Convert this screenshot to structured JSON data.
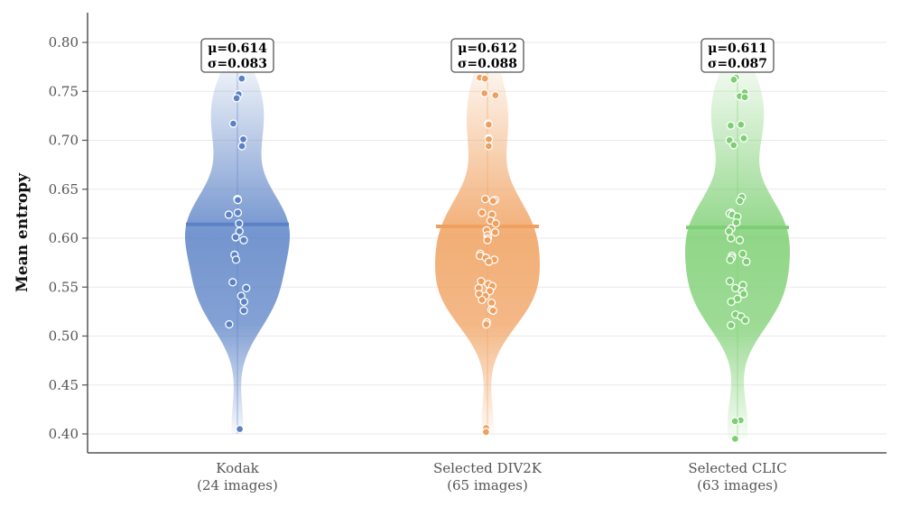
{
  "chart_data": {
    "type": "violin",
    "title": "",
    "xlabel": "",
    "ylabel": "Mean entropy",
    "ylim": [
      0.38,
      0.83
    ],
    "yticks": [
      "0.40",
      "0.45",
      "0.50",
      "0.55",
      "0.60",
      "0.65",
      "0.70",
      "0.75",
      "0.80"
    ],
    "grid": true,
    "series": [
      {
        "name": "Kodak",
        "sublabel": "(24 images)",
        "color": "#5b82c6",
        "mean": 0.614,
        "mean_label": "μ=0.614",
        "std_label": "σ=0.083",
        "range": [
          0.4,
          0.77
        ],
        "points": [
          0.763,
          0.747,
          0.743,
          0.717,
          0.701,
          0.694,
          0.64,
          0.639,
          0.626,
          0.624,
          0.615,
          0.607,
          0.601,
          0.598,
          0.583,
          0.578,
          0.555,
          0.549,
          0.541,
          0.535,
          0.526,
          0.512,
          0.405
        ]
      },
      {
        "name": "Selected DIV2K",
        "sublabel": "(65 images)",
        "color": "#f0a05e",
        "mean": 0.612,
        "mean_label": "μ=0.612",
        "std_label": "σ=0.088",
        "range": [
          0.4,
          0.77
        ],
        "points": [
          0.764,
          0.763,
          0.748,
          0.746,
          0.717,
          0.716,
          0.702,
          0.701,
          0.694,
          0.64,
          0.639,
          0.638,
          0.626,
          0.624,
          0.618,
          0.615,
          0.608,
          0.606,
          0.603,
          0.6,
          0.598,
          0.584,
          0.582,
          0.58,
          0.578,
          0.576,
          0.556,
          0.553,
          0.551,
          0.549,
          0.546,
          0.543,
          0.541,
          0.537,
          0.534,
          0.527,
          0.526,
          0.514,
          0.512,
          0.406,
          0.402
        ]
      },
      {
        "name": "Selected CLIC",
        "sublabel": "(63 images)",
        "color": "#7dcf73",
        "mean": 0.611,
        "mean_label": "μ=0.611",
        "std_label": "σ=0.087",
        "range": [
          0.395,
          0.77
        ],
        "points": [
          0.764,
          0.762,
          0.749,
          0.745,
          0.744,
          0.716,
          0.715,
          0.702,
          0.7,
          0.695,
          0.642,
          0.638,
          0.626,
          0.625,
          0.624,
          0.622,
          0.616,
          0.61,
          0.607,
          0.6,
          0.598,
          0.584,
          0.582,
          0.58,
          0.578,
          0.576,
          0.556,
          0.552,
          0.549,
          0.546,
          0.543,
          0.538,
          0.535,
          0.522,
          0.52,
          0.516,
          0.511,
          0.414,
          0.413,
          0.395
        ]
      }
    ]
  }
}
